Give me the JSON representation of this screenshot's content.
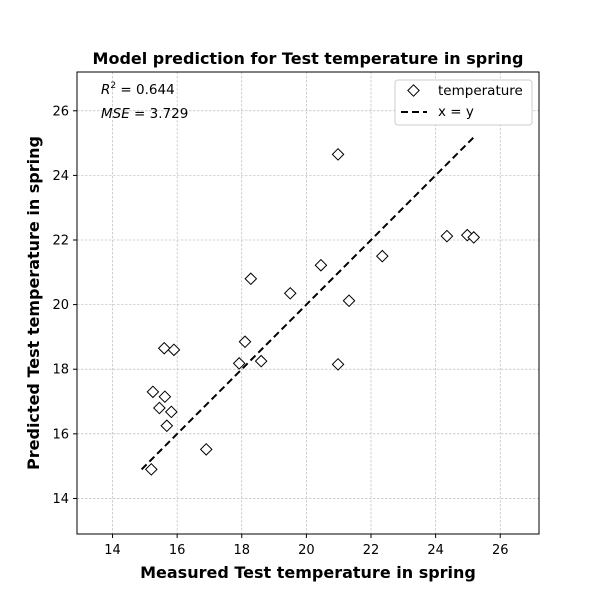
{
  "chart_data": {
    "type": "scatter",
    "title": "Model prediction for Test temperature in spring",
    "xlabel": "Measured Test temperature in spring",
    "ylabel": "Predicted Test temperature in spring",
    "xlim": [
      12.9,
      27.2
    ],
    "ylim": [
      12.9,
      27.2
    ],
    "xticks": [
      "14",
      "16",
      "18",
      "20",
      "22",
      "24",
      "26"
    ],
    "yticks": [
      "14",
      "16",
      "18",
      "20",
      "22",
      "24",
      "26"
    ],
    "grid": true,
    "legend_position": "top-right",
    "annotations": {
      "r2_label": "R",
      "r2_sup": "2",
      "r2_value": " = 0.644",
      "mse_label": "MSE",
      "mse_value": " = 3.729"
    },
    "series": [
      {
        "name": "temperature",
        "marker": "diamond",
        "points": [
          [
            15.2,
            14.9
          ],
          [
            15.25,
            17.3
          ],
          [
            15.45,
            16.8
          ],
          [
            15.6,
            18.65
          ],
          [
            15.62,
            17.15
          ],
          [
            15.68,
            16.25
          ],
          [
            15.82,
            16.68
          ],
          [
            15.9,
            18.6
          ],
          [
            16.9,
            15.52
          ],
          [
            17.92,
            18.18
          ],
          [
            18.1,
            18.85
          ],
          [
            18.28,
            20.8
          ],
          [
            18.6,
            18.25
          ],
          [
            19.5,
            20.35
          ],
          [
            20.45,
            21.22
          ],
          [
            20.98,
            24.65
          ],
          [
            20.98,
            18.15
          ],
          [
            21.32,
            20.12
          ],
          [
            22.35,
            21.5
          ],
          [
            24.35,
            22.12
          ],
          [
            24.98,
            22.15
          ],
          [
            25.18,
            22.08
          ]
        ]
      },
      {
        "name": "x = y",
        "style": "dashed",
        "points": [
          [
            14.9,
            14.9
          ],
          [
            25.18,
            25.18
          ]
        ]
      }
    ]
  }
}
